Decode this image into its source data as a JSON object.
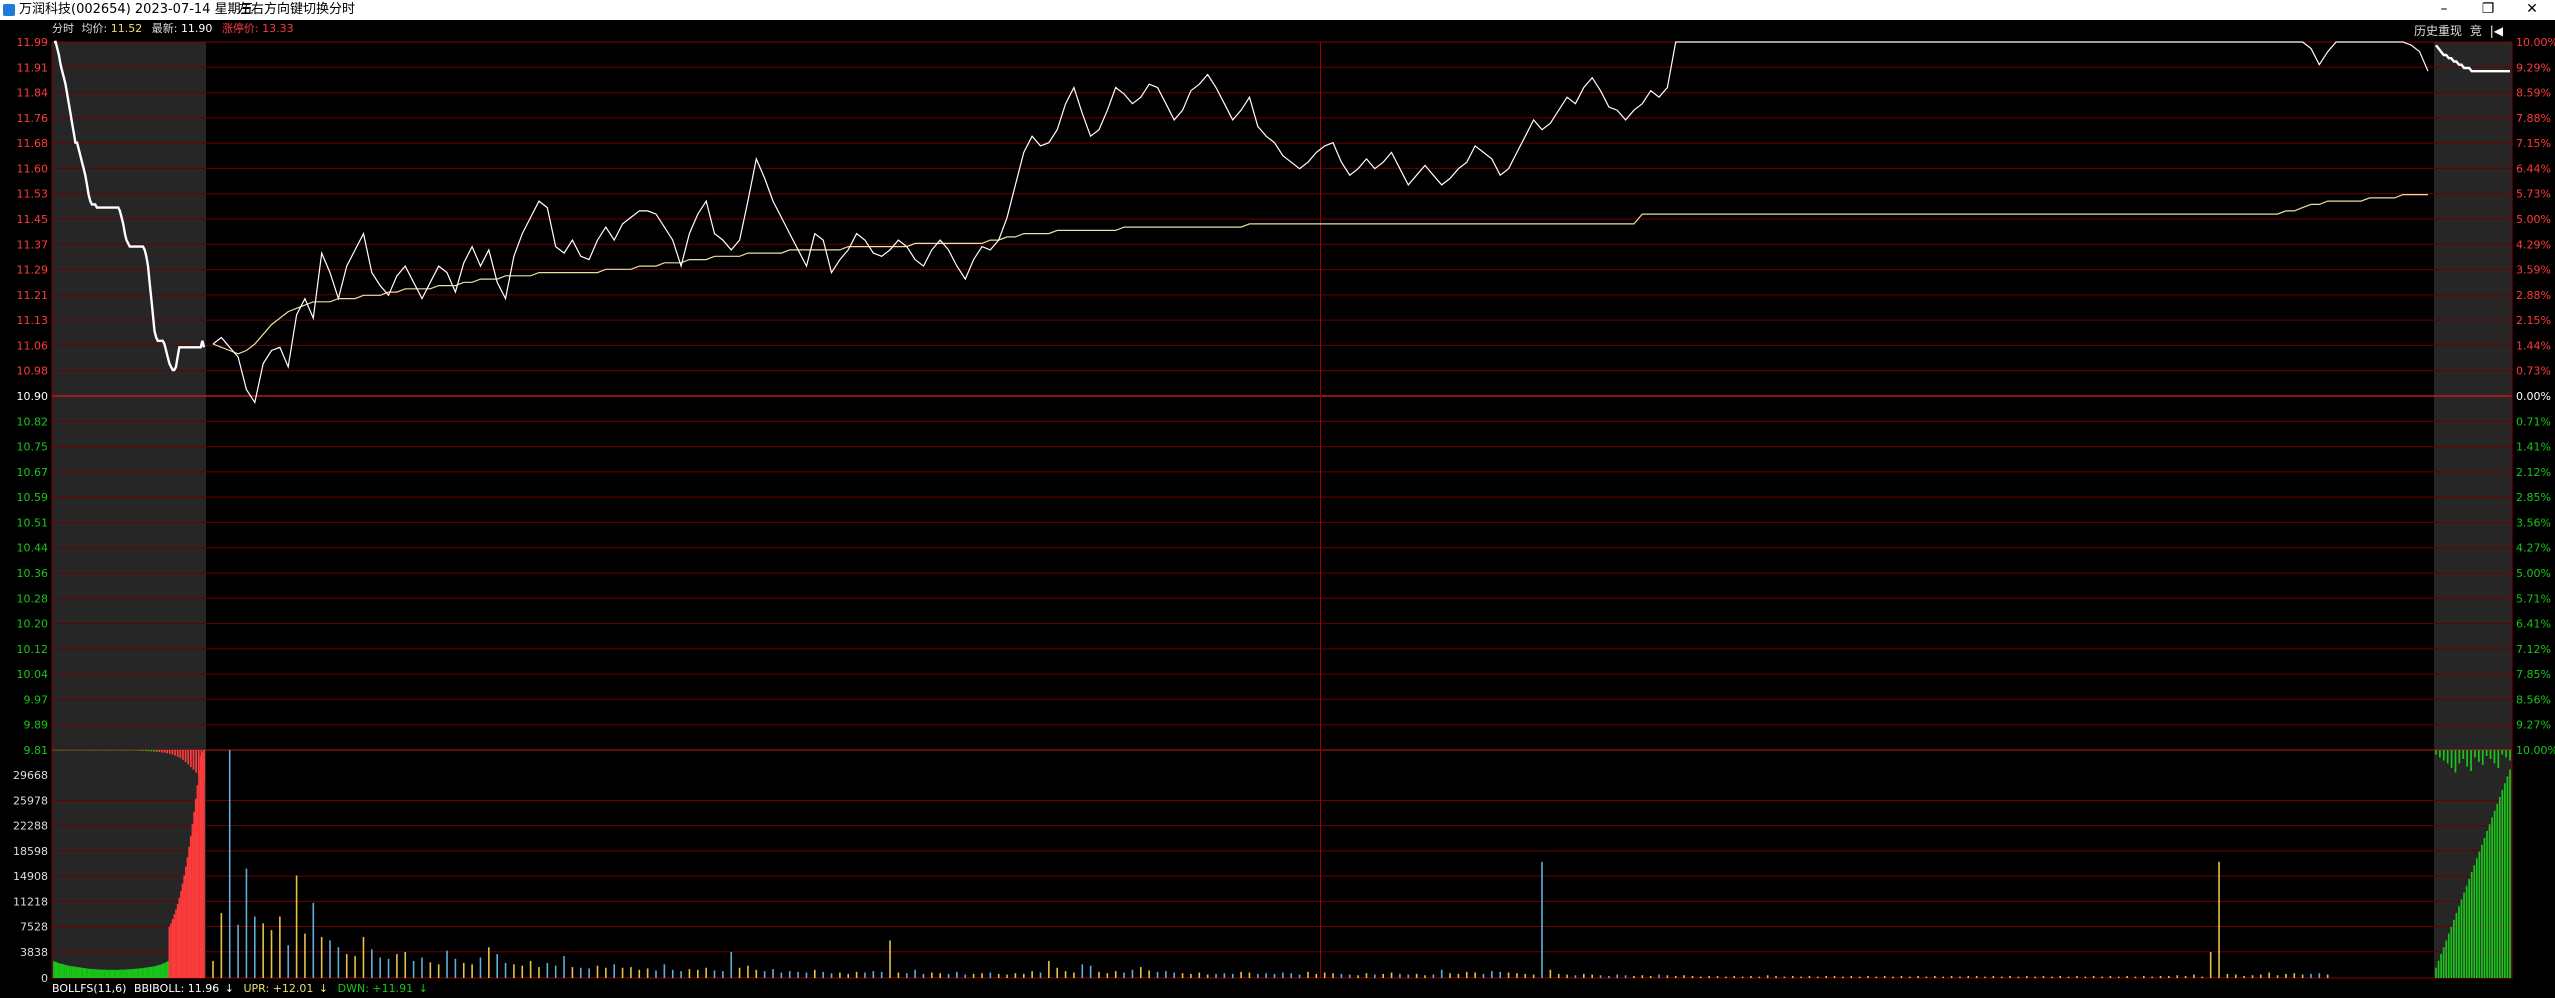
{
  "window": {
    "title": "万润科技(002654) 2023-07-14 星期五",
    "hint": "左右方向键切换分时",
    "controls": {
      "minimize": "–",
      "restore": "❐",
      "close": "✕"
    }
  },
  "info_bar": {
    "mode": "分时",
    "avg_label": "均价:",
    "avg_value": "11.52",
    "latest_label": "最新:",
    "latest_value": "11.90",
    "limit_label": "涨停价:",
    "limit_value": "13.33"
  },
  "top_right": {
    "history": "历史重现",
    "extra": "竞"
  },
  "indicator": {
    "name": "BOLLFS(11,6)",
    "mid_label": "BBIBOLL:",
    "mid_value": "11.96",
    "upr_label": "UPR:",
    "upr_value": "+12.01",
    "dwn_label": "DWN:",
    "dwn_value": "+11.91"
  },
  "colors": {
    "up": "#ff3b3b",
    "down": "#19c619",
    "grid": "#6b0000",
    "price_line": "#ffffff",
    "avg_line": "#e8e0a0",
    "vol_up": "#e8c24a",
    "vol_down": "#5fb0d8"
  },
  "chart_data": {
    "type": "line",
    "prev_close": 10.9,
    "price_ticks": [
      "11.99",
      "11.91",
      "11.84",
      "11.76",
      "11.68",
      "11.60",
      "11.53",
      "11.45",
      "11.37",
      "11.29",
      "11.21",
      "11.13",
      "11.06",
      "10.98",
      "10.90",
      "10.82",
      "10.75",
      "10.67",
      "10.59",
      "10.51",
      "10.44",
      "10.36",
      "10.28",
      "10.20",
      "10.12",
      "10.04",
      "9.97",
      "9.89",
      "9.81"
    ],
    "pct_ticks": [
      "10.00%",
      "9.29%",
      "8.59%",
      "7.88%",
      "7.15%",
      "6.44%",
      "5.73%",
      "5.00%",
      "4.29%",
      "3.59%",
      "2.88%",
      "2.15%",
      "1.44%",
      "0.73%",
      "0.00%",
      "0.71%",
      "1.41%",
      "2.12%",
      "2.85%",
      "3.56%",
      "4.27%",
      "5.00%",
      "5.71%",
      "6.41%",
      "7.12%",
      "7.85%",
      "8.56%",
      "9.27%",
      "10.00%"
    ],
    "volume_ticks": [
      "29668",
      "25978",
      "22288",
      "18598",
      "14908",
      "11218",
      "7528",
      "3838",
      "0"
    ],
    "price_range": [
      9.81,
      11.99
    ],
    "volume_max": 33358,
    "minutes": 240,
    "auction_open_price": [
      11.99,
      11.99,
      11.97,
      11.95,
      11.92,
      11.9,
      11.88,
      11.86,
      11.83,
      11.8,
      11.77,
      11.74,
      11.71,
      11.68,
      11.68,
      11.66,
      11.64,
      11.62,
      11.6,
      11.58,
      11.55,
      11.52,
      11.5,
      11.49,
      11.49,
      11.49,
      11.48,
      11.48,
      11.48,
      11.48,
      11.48,
      11.48,
      11.48,
      11.48,
      11.48,
      11.48,
      11.48,
      11.48,
      11.48,
      11.48,
      11.47,
      11.45,
      11.43,
      11.4,
      11.38,
      11.37,
      11.36,
      11.36,
      11.36,
      11.36,
      11.36,
      11.36,
      11.36,
      11.36,
      11.36,
      11.35,
      11.33,
      11.3,
      11.25,
      11.2,
      11.15,
      11.1,
      11.08,
      11.07,
      11.07,
      11.07,
      11.07,
      11.06,
      11.04,
      11.02,
      11.0,
      10.99,
      10.98,
      10.98,
      10.99,
      11.02,
      11.05,
      11.05,
      11.05,
      11.05,
      11.05,
      11.05,
      11.05,
      11.05,
      11.05,
      11.05,
      11.05,
      11.05,
      11.05,
      11.05,
      11.07,
      11.05
    ],
    "auction_close_price": [
      11.98,
      11.97,
      11.96,
      11.95,
      11.95,
      11.94,
      11.94,
      11.93,
      11.93,
      11.92,
      11.92,
      11.91,
      11.91,
      11.91,
      11.9,
      11.9,
      11.9,
      11.9,
      11.9,
      11.9,
      11.9,
      11.9,
      11.9,
      11.9,
      11.9,
      11.9,
      11.9,
      11.9,
      11.9,
      11.9
    ],
    "price": [
      11.06,
      11.08,
      11.05,
      11.02,
      10.92,
      10.88,
      11.0,
      11.04,
      11.05,
      10.99,
      11.15,
      11.2,
      11.14,
      11.34,
      11.28,
      11.2,
      11.3,
      11.35,
      11.4,
      11.28,
      11.24,
      11.21,
      11.27,
      11.3,
      11.25,
      11.2,
      11.25,
      11.3,
      11.28,
      11.22,
      11.31,
      11.36,
      11.3,
      11.35,
      11.25,
      11.2,
      11.33,
      11.4,
      11.45,
      11.5,
      11.48,
      11.36,
      11.34,
      11.38,
      11.33,
      11.32,
      11.38,
      11.42,
      11.38,
      11.43,
      11.45,
      11.47,
      11.47,
      11.46,
      11.42,
      11.38,
      11.3,
      11.4,
      11.46,
      11.5,
      11.4,
      11.38,
      11.35,
      11.38,
      11.5,
      11.63,
      11.57,
      11.5,
      11.45,
      11.4,
      11.35,
      11.3,
      11.4,
      11.38,
      11.28,
      11.32,
      11.35,
      11.4,
      11.38,
      11.34,
      11.33,
      11.35,
      11.38,
      11.36,
      11.32,
      11.3,
      11.35,
      11.38,
      11.35,
      11.3,
      11.26,
      11.32,
      11.36,
      11.35,
      11.38,
      11.45,
      11.55,
      11.65,
      11.7,
      11.67,
      11.68,
      11.72,
      11.8,
      11.85,
      11.77,
      11.7,
      11.72,
      11.78,
      11.85,
      11.83,
      11.8,
      11.82,
      11.86,
      11.85,
      11.8,
      11.75,
      11.78,
      11.84,
      11.86,
      11.89,
      11.85,
      11.8,
      11.75,
      11.78,
      11.82,
      11.73,
      11.7,
      11.68,
      11.64,
      11.62,
      11.6,
      11.62,
      11.65,
      11.67,
      11.68,
      11.62,
      11.58,
      11.6,
      11.63,
      11.6,
      11.62,
      11.65,
      11.6,
      11.55,
      11.58,
      11.61,
      11.58,
      11.55,
      11.57,
      11.6,
      11.62,
      11.67,
      11.65,
      11.63,
      11.58,
      11.6,
      11.65,
      11.7,
      11.75,
      11.72,
      11.74,
      11.78,
      11.82,
      11.8,
      11.85,
      11.88,
      11.84,
      11.79,
      11.78,
      11.75,
      11.78,
      11.8,
      11.84,
      11.82,
      11.85,
      11.99,
      11.99,
      11.99,
      11.99,
      11.99,
      11.99,
      11.99,
      11.99,
      11.99,
      11.99,
      11.99,
      11.99,
      11.99,
      11.99,
      11.99,
      11.99,
      11.99,
      11.99,
      11.99,
      11.99,
      11.99,
      11.99,
      11.99,
      11.99,
      11.99,
      11.99,
      11.99,
      11.99,
      11.99,
      11.99,
      11.99,
      11.99,
      11.99,
      11.99,
      11.99,
      11.99,
      11.99,
      11.99,
      11.99,
      11.99,
      11.99,
      11.99,
      11.99,
      11.99,
      11.99,
      11.99,
      11.99,
      11.99,
      11.99,
      11.99,
      11.99,
      11.99,
      11.99,
      11.99,
      11.99,
      11.99,
      11.99,
      11.99,
      11.99,
      11.99,
      11.99,
      11.99,
      11.99,
      11.99,
      11.99,
      11.99,
      11.99,
      11.99,
      11.99,
      11.99,
      11.99
    ],
    "price_tail": [
      11.99,
      11.99,
      11.99,
      11.99,
      11.99,
      11.97,
      11.92,
      11.96,
      11.99,
      11.99,
      11.99,
      11.99,
      11.99,
      11.99,
      11.99,
      11.99,
      11.99,
      11.98,
      11.96,
      11.9
    ],
    "avg_price": [
      11.06,
      11.05,
      11.04,
      11.03,
      11.04,
      11.06,
      11.09,
      11.12,
      11.14,
      11.16,
      11.17,
      11.18,
      11.19,
      11.19,
      11.19,
      11.2,
      11.2,
      11.2,
      11.21,
      11.21,
      11.21,
      11.22,
      11.22,
      11.23,
      11.23,
      11.23,
      11.23,
      11.24,
      11.24,
      11.24,
      11.25,
      11.25,
      11.26,
      11.26,
      11.26,
      11.27,
      11.27,
      11.27,
      11.27,
      11.28,
      11.28,
      11.28,
      11.28,
      11.28,
      11.28,
      11.28,
      11.28,
      11.29,
      11.29,
      11.29,
      11.29,
      11.3,
      11.3,
      11.3,
      11.31,
      11.31,
      11.31,
      11.32,
      11.32,
      11.32,
      11.33,
      11.33,
      11.33,
      11.33,
      11.34,
      11.34,
      11.34,
      11.34,
      11.34,
      11.35,
      11.35,
      11.35,
      11.35,
      11.35,
      11.35,
      11.35,
      11.36,
      11.36,
      11.36,
      11.36,
      11.36,
      11.36,
      11.36,
      11.36,
      11.37,
      11.37,
      11.37,
      11.37,
      11.37,
      11.37,
      11.37,
      11.37,
      11.37,
      11.38,
      11.38,
      11.39,
      11.39,
      11.4,
      11.4,
      11.4,
      11.4,
      11.41,
      11.41,
      11.41,
      11.41,
      11.41,
      11.41,
      11.41,
      11.41,
      11.42,
      11.42,
      11.42,
      11.42,
      11.42,
      11.42,
      11.42,
      11.42,
      11.42,
      11.42,
      11.42,
      11.42,
      11.42,
      11.42,
      11.42,
      11.43,
      11.43,
      11.43,
      11.43,
      11.43,
      11.43,
      11.43,
      11.43,
      11.43,
      11.43,
      11.43,
      11.43,
      11.43,
      11.43,
      11.43,
      11.43,
      11.43,
      11.43,
      11.43,
      11.43,
      11.43,
      11.43,
      11.43,
      11.43,
      11.43,
      11.43,
      11.43,
      11.43,
      11.43,
      11.43,
      11.43,
      11.43,
      11.43,
      11.43,
      11.43,
      11.43,
      11.43,
      11.43,
      11.43,
      11.43,
      11.43,
      11.43,
      11.43,
      11.43,
      11.43,
      11.43,
      11.43,
      11.46,
      11.46,
      11.46,
      11.46,
      11.46,
      11.46,
      11.46,
      11.46,
      11.46,
      11.46,
      11.46,
      11.46,
      11.46,
      11.46,
      11.46,
      11.46,
      11.46,
      11.46,
      11.46,
      11.46,
      11.46,
      11.46,
      11.46,
      11.46,
      11.46,
      11.46,
      11.46,
      11.46,
      11.46,
      11.46,
      11.46,
      11.46,
      11.46,
      11.46,
      11.46,
      11.46,
      11.46,
      11.46,
      11.46,
      11.46,
      11.46,
      11.46,
      11.46,
      11.46,
      11.46,
      11.46,
      11.46,
      11.46,
      11.46,
      11.46,
      11.46,
      11.46,
      11.46,
      11.46,
      11.46,
      11.46,
      11.46,
      11.46,
      11.46,
      11.46,
      11.46,
      11.46,
      11.46,
      11.46,
      11.46,
      11.46,
      11.46,
      11.46,
      11.46,
      11.46,
      11.46,
      11.46,
      11.46,
      11.46,
      11.46
    ],
    "avg_tail": [
      11.46,
      11.46,
      11.47,
      11.47,
      11.48,
      11.49,
      11.49,
      11.5,
      11.5,
      11.5,
      11.5,
      11.5,
      11.51,
      11.51,
      11.51,
      11.51,
      11.52,
      11.52,
      11.52,
      11.52
    ],
    "volume": [
      2500,
      9500,
      33358,
      7800,
      16000,
      9000,
      8000,
      7000,
      9000,
      4800,
      15000,
      6500,
      11000,
      6000,
      5500,
      4500,
      3500,
      3200,
      6000,
      4200,
      3000,
      2800,
      3500,
      3800,
      2500,
      3000,
      2300,
      2000,
      4000,
      2800,
      2200,
      2000,
      3000,
      4500,
      3500,
      2200,
      2000,
      1800,
      2500,
      1600,
      2200,
      1800,
      3200,
      1600,
      1500,
      1400,
      1800,
      1500,
      2000,
      1500,
      1600,
      1200,
      1400,
      1100,
      2000,
      1200,
      1000,
      1300,
      1200,
      1500,
      1100,
      1000,
      3800,
      1500,
      1800,
      1200,
      1000,
      1300,
      800,
      1000,
      900,
      800,
      1200,
      900,
      700,
      800,
      600,
      900,
      800,
      1000,
      900,
      5500,
      800,
      700,
      1200,
      600,
      800,
      700,
      600,
      900,
      500,
      600,
      700,
      800,
      600,
      500,
      700,
      600,
      1000,
      800,
      2500,
      1500,
      1000,
      800,
      2000,
      1800,
      900,
      700,
      1000,
      800,
      1200,
      1600,
      1100,
      900,
      1000,
      800,
      700,
      600,
      800,
      500,
      600,
      700,
      600,
      900,
      800,
      600,
      700,
      600,
      800,
      700,
      500,
      900,
      600,
      800,
      700,
      600,
      500,
      400,
      700,
      500,
      600,
      800,
      600,
      500,
      600,
      400,
      500,
      1200,
      700,
      600,
      900,
      800,
      600,
      1000,
      900,
      800,
      700,
      600,
      500,
      17000,
      1200,
      600,
      500,
      400,
      600,
      500,
      400,
      300,
      500,
      400,
      300,
      400,
      300,
      500,
      400,
      300,
      400,
      300,
      200,
      300,
      300,
      200,
      300,
      200,
      300,
      200,
      400,
      300,
      200,
      300,
      200,
      300,
      200,
      300,
      300,
      200,
      300,
      200,
      300,
      200,
      300,
      200,
      300,
      200,
      300,
      200,
      300,
      200,
      300,
      200,
      300,
      300,
      200,
      300,
      200,
      300,
      200,
      300,
      200,
      300,
      200,
      300,
      200,
      300,
      200,
      300,
      200,
      300,
      200,
      300,
      200,
      300,
      200,
      300
    ],
    "volume_tail": [
      300,
      400,
      300,
      500,
      200,
      3800,
      17000,
      600,
      500,
      300,
      400,
      500,
      800,
      400,
      600,
      700,
      500,
      600,
      700,
      500
    ],
    "auction_open_volume": [
      7000,
      6800,
      6500,
      6200,
      6000,
      5900,
      5700,
      5500,
      5300,
      5100,
      5000,
      4900,
      4800,
      4700,
      4600,
      4500,
      4400,
      4300,
      4200,
      4100,
      4000,
      3900,
      3800,
      3800,
      3700,
      3700,
      3600,
      3600,
      3500,
      3500,
      3500,
      3500,
      3400,
      3400,
      3400,
      3400,
      3400,
      3400,
      3400,
      3400,
      3500,
      3500,
      3500,
      3500,
      3600,
      3600,
      3700,
      3700,
      3800,
      3800,
      3900,
      4000,
      4000,
      4100,
      4200,
      4300,
      4400,
      4500,
      4600,
      4700,
      4800,
      4900,
      5100,
      5300,
      5500,
      5700,
      6000,
      6300,
      6600,
      7000,
      7500,
      8000,
      8600,
      9300,
      10000,
      10800,
      11700,
      12700,
      13800,
      15000,
      16300,
      17700,
      19200,
      20800,
      22500,
      24300,
      26200,
      28200,
      30300,
      32500,
      33000,
      33358
    ],
    "auction_close_volume": [
      1500,
      2500,
      3500,
      4500,
      5500,
      6500,
      7500,
      8500,
      9500,
      10500,
      11500,
      12500,
      13500,
      14500,
      15500,
      16500,
      17500,
      18500,
      19500,
      20500,
      21500,
      22500,
      23500,
      24500,
      25500,
      26500,
      27500,
      28500,
      29500,
      30500
    ],
    "auction_open_bar": [
      400,
      500,
      600,
      450,
      500,
      550,
      400,
      600,
      500,
      450,
      500,
      400,
      550,
      500,
      600,
      450,
      500,
      400,
      550,
      500,
      600,
      450,
      500,
      400,
      550,
      500,
      600,
      450,
      500,
      450,
      500,
      600,
      700,
      800,
      900,
      1100,
      1300,
      1500,
      1800,
      2000,
      2300,
      2700,
      3000,
      3600,
      4300,
      5000,
      6200,
      7500,
      9000,
      11000,
      13500,
      16000,
      19000,
      22000,
      25000,
      28000,
      31000,
      33358
    ],
    "auction_close_bar": [
      3000,
      5000,
      7000,
      9000,
      12000,
      15000,
      9000,
      6000,
      11000,
      14000,
      5000,
      8000,
      10000,
      4000,
      6000,
      9000,
      12000,
      3000,
      5000,
      7000
    ]
  }
}
